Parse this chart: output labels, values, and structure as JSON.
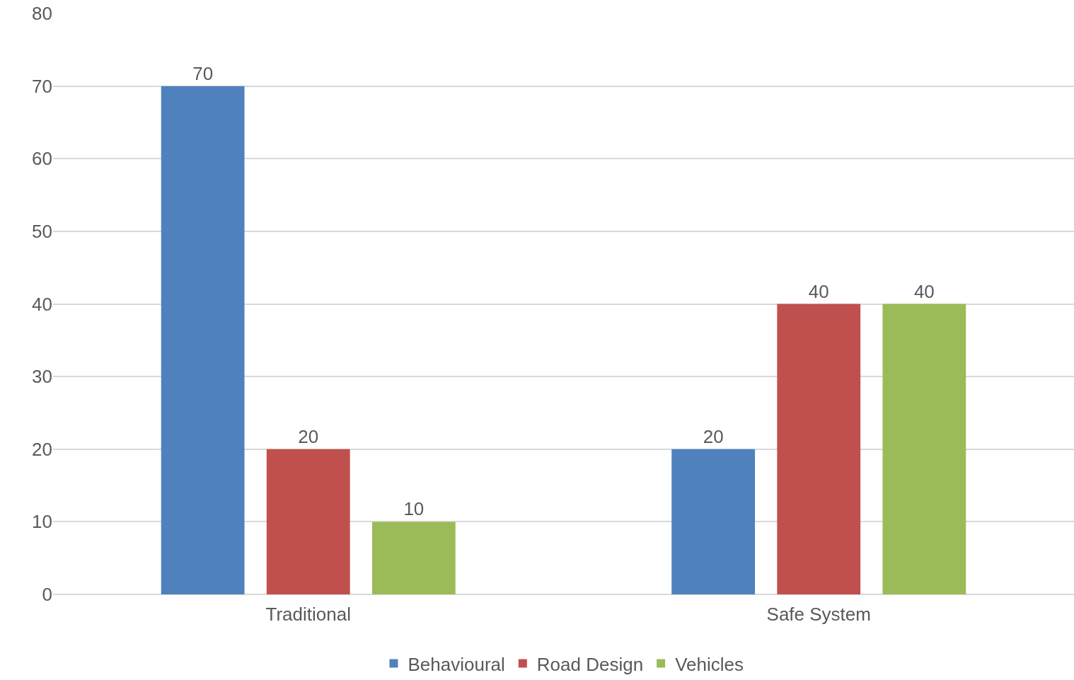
{
  "chart_data": {
    "type": "bar",
    "categories": [
      "Traditional",
      "Safe System"
    ],
    "series": [
      {
        "name": "Behavioural",
        "color": "#4f81bd",
        "values": [
          70,
          20
        ]
      },
      {
        "name": "Road Design",
        "color": "#c0504d",
        "values": [
          20,
          40
        ]
      },
      {
        "name": "Vehicles",
        "color": "#9bbb59",
        "values": [
          10,
          40
        ]
      }
    ],
    "ylim": [
      0,
      80
    ],
    "yticks": [
      0,
      10,
      20,
      30,
      40,
      50,
      60,
      70,
      80
    ],
    "grid": "y",
    "legend": "bottom",
    "data_labels": true
  }
}
